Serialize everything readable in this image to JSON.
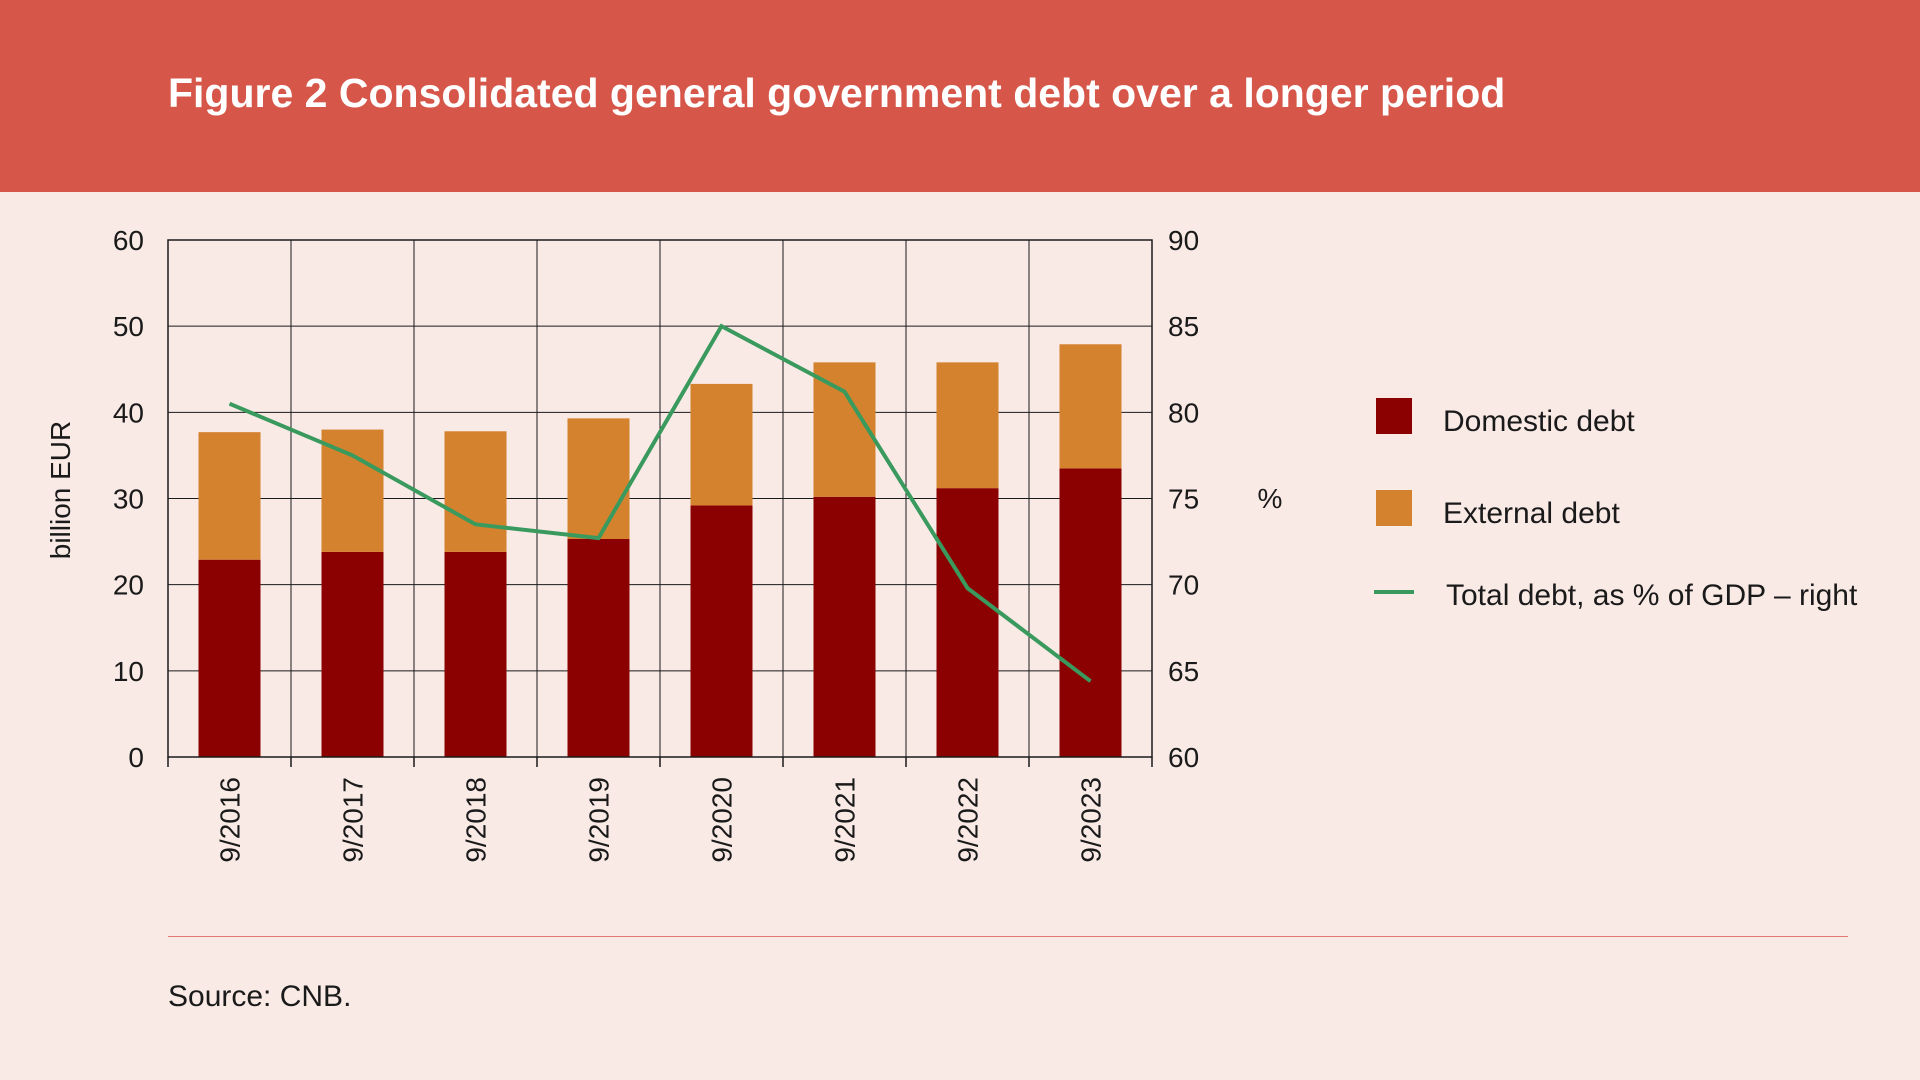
{
  "header": {
    "title": "Figure 2 Consolidated general government debt over a longer period"
  },
  "footer": {
    "source": "Source: CNB."
  },
  "colors": {
    "header_bg": "#d6574a",
    "background": "#f9eae6",
    "domestic": "#8b0000",
    "external": "#d4822e",
    "line": "#3a9a5e"
  },
  "chart_data": {
    "type": "bar",
    "stacked": true,
    "categories": [
      "9/2016",
      "9/2017",
      "9/2018",
      "9/2019",
      "9/2020",
      "9/2021",
      "9/2022",
      "9/2023"
    ],
    "series": [
      {
        "name": "Domestic debt",
        "axis": "left",
        "type": "bar",
        "values": [
          22.9,
          23.8,
          23.8,
          25.3,
          29.2,
          30.2,
          31.2,
          33.5
        ]
      },
      {
        "name": "External debt",
        "axis": "left",
        "type": "bar",
        "values": [
          14.8,
          14.2,
          14.0,
          14.0,
          14.1,
          15.6,
          14.6,
          14.4
        ]
      },
      {
        "name": "Total debt, as % of GDP – right",
        "axis": "right",
        "type": "line",
        "values": [
          80.5,
          77.5,
          73.5,
          72.7,
          85.0,
          81.2,
          69.8,
          64.4
        ]
      }
    ],
    "ylabel": "billion EUR",
    "ylim": [
      0,
      60
    ],
    "yticks": [
      "0",
      "10",
      "20",
      "30",
      "40",
      "50",
      "60"
    ],
    "y2label": "%",
    "y2lim": [
      60,
      90
    ],
    "y2ticks": [
      "60",
      "65",
      "70",
      "75",
      "80",
      "85",
      "90"
    ],
    "grid": true,
    "legend_position": "right"
  }
}
